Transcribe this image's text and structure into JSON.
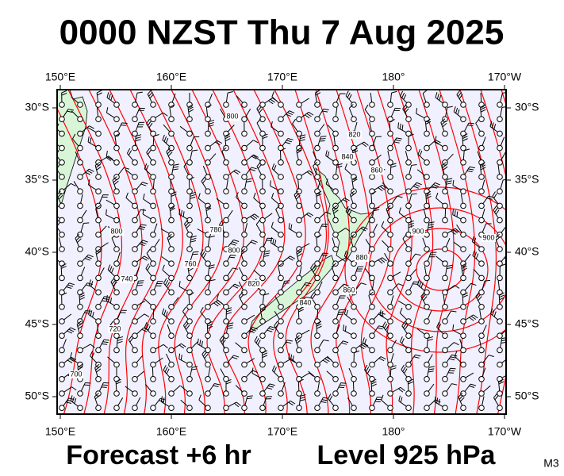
{
  "header": {
    "title": "0000 NZST Thu 7 Aug 2025"
  },
  "map": {
    "lon_ticks": [
      {
        "value": 150,
        "label": "150°E"
      },
      {
        "value": 160,
        "label": "160°E"
      },
      {
        "value": 170,
        "label": "170°E"
      },
      {
        "value": 180,
        "label": "180°"
      },
      {
        "value": 190,
        "label": "170°W"
      }
    ],
    "lat_ticks": [
      {
        "value": 30,
        "label": "30°S"
      },
      {
        "value": 35,
        "label": "35°S"
      },
      {
        "value": 40,
        "label": "40°S"
      },
      {
        "value": 45,
        "label": "45°S"
      },
      {
        "value": 50,
        "label": "50°S"
      }
    ],
    "contour_labels": [
      "800",
      "820",
      "840",
      "860",
      "900",
      "900",
      "880",
      "860",
      "800",
      "780",
      "800",
      "760",
      "740",
      "720",
      "700",
      "820",
      "840"
    ]
  },
  "footer": {
    "forecast": "Forecast +6 hr",
    "level": "Level 925 hPa",
    "model": "M3"
  }
}
